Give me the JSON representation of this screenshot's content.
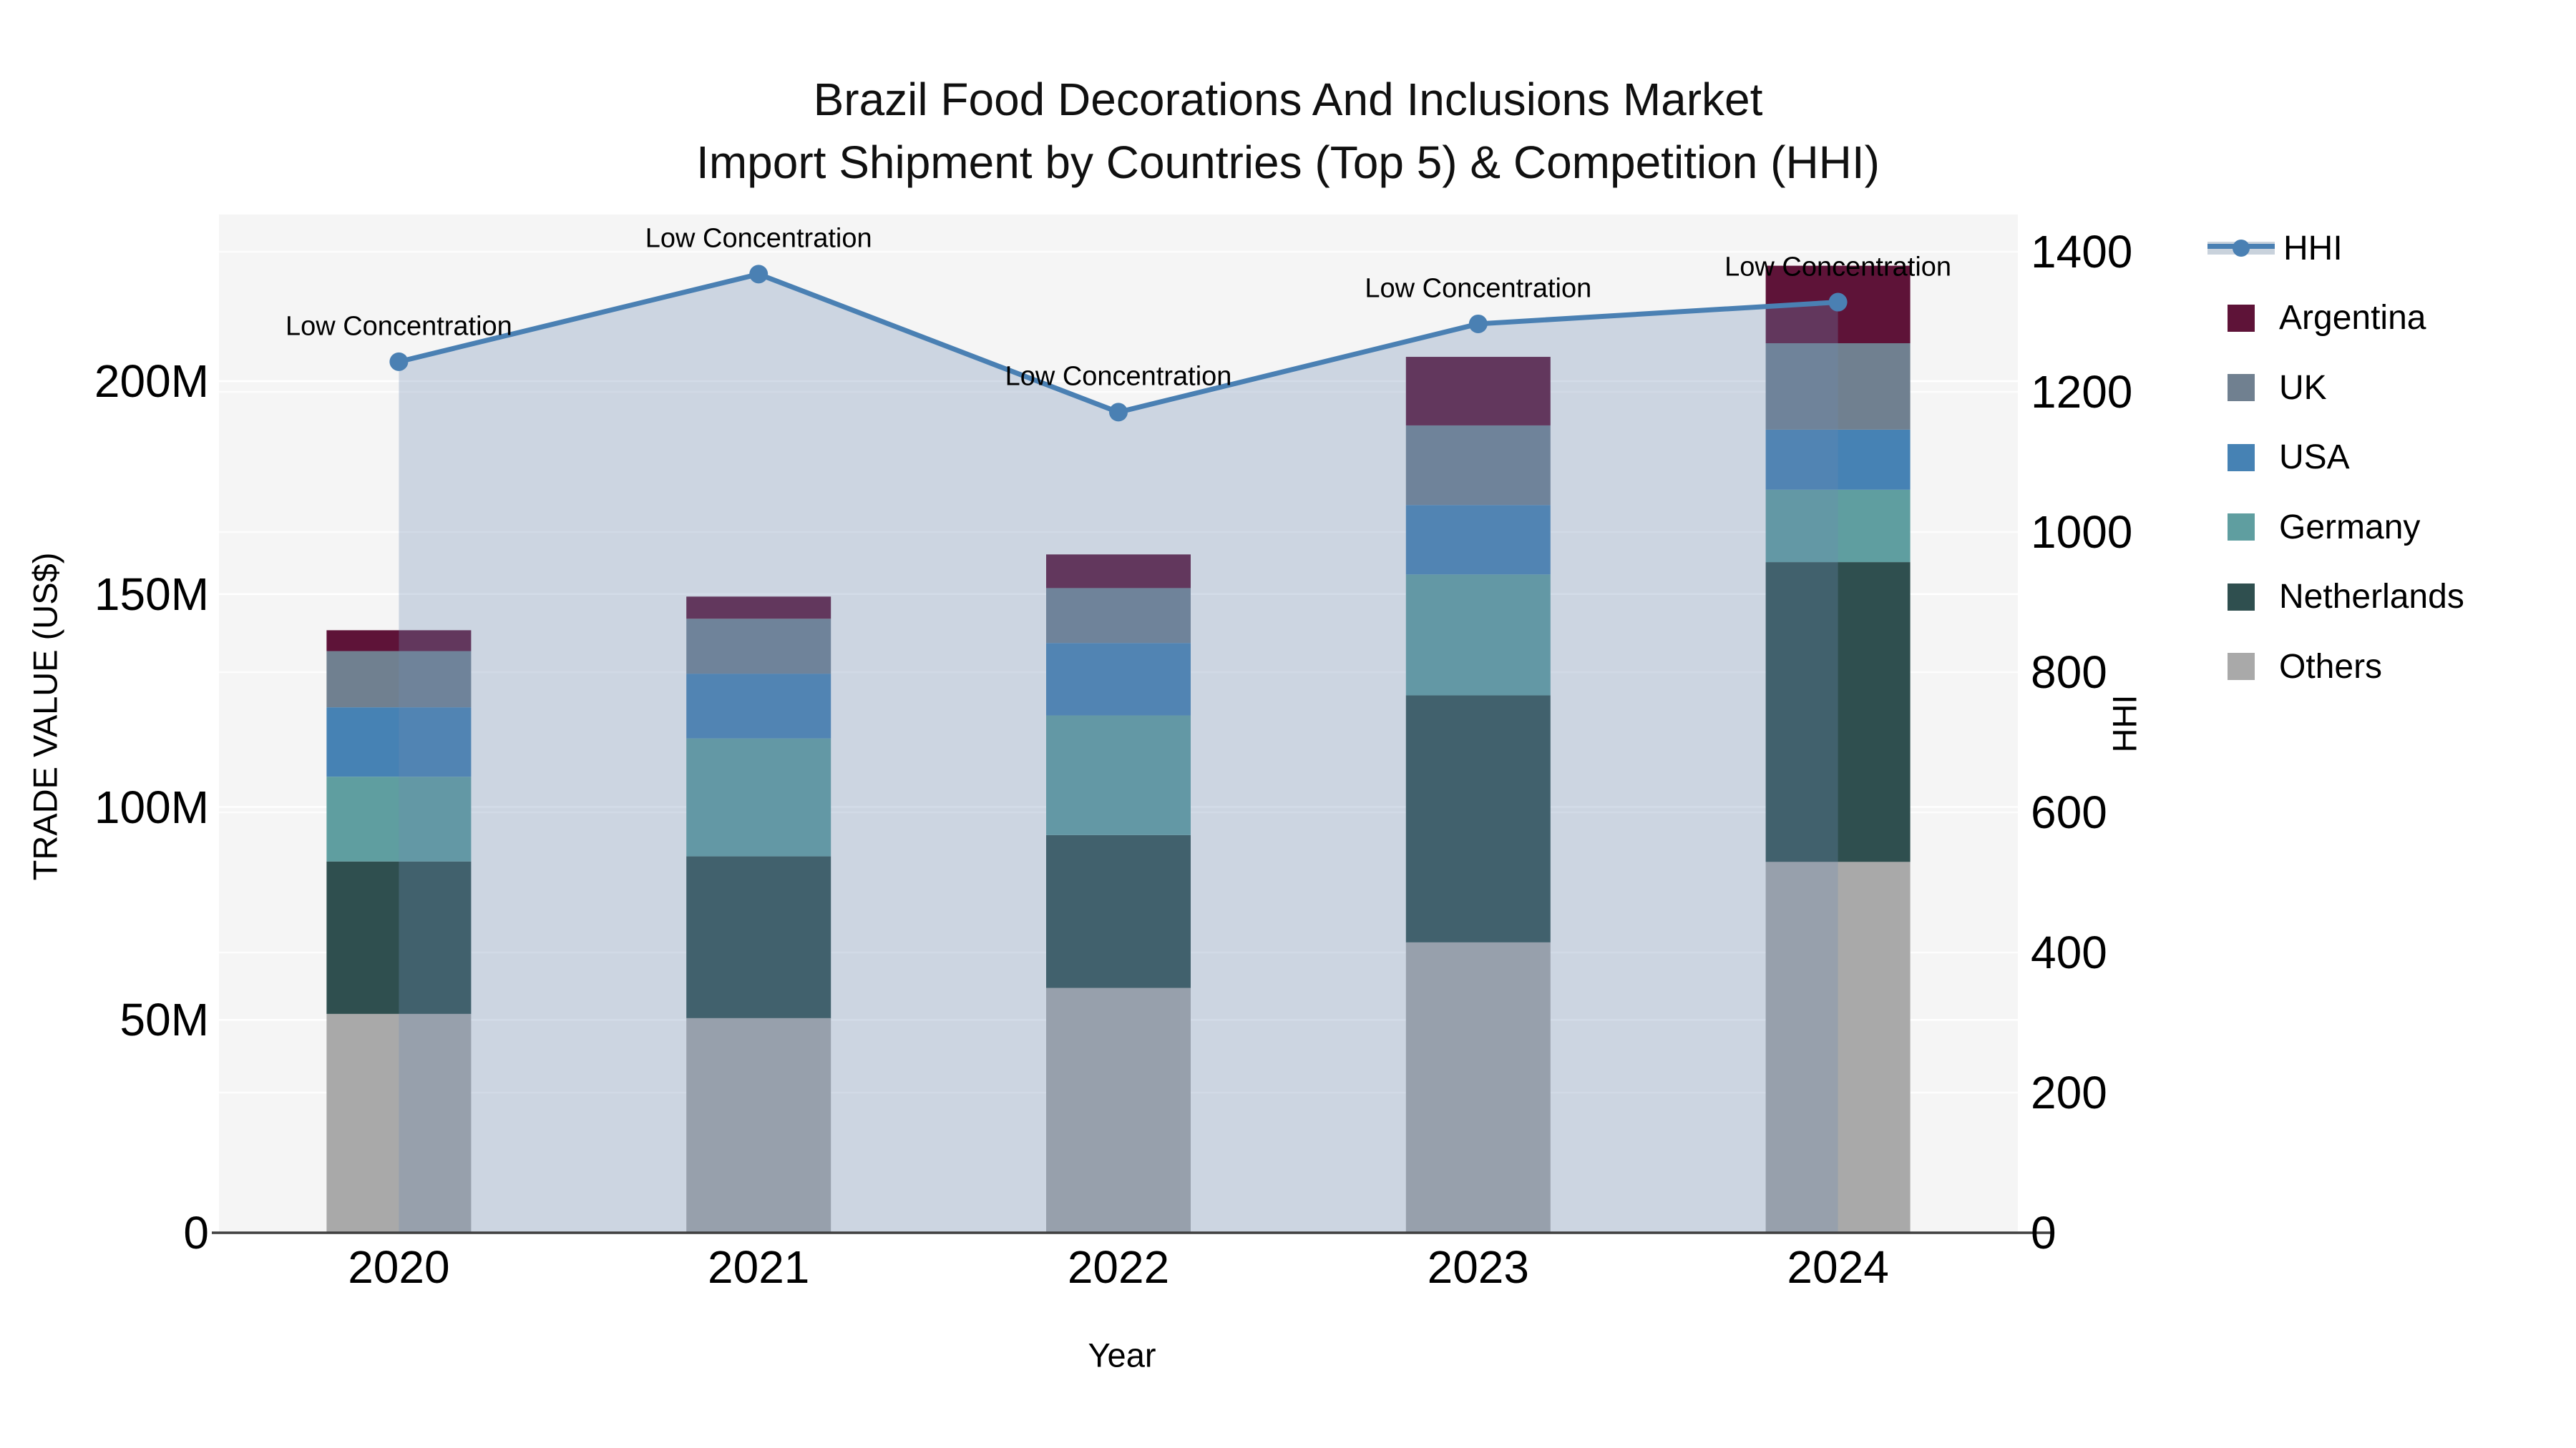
{
  "title": {
    "line1": "Brazil Food Decorations And Inclusions Market",
    "line2": "Import Shipment by Countries (Top 5) & Competition (HHI)"
  },
  "axes": {
    "y_left": {
      "title": "TRADE VALUE (US$)",
      "tick_labels": [
        "0",
        "50M",
        "100M",
        "150M",
        "200M"
      ],
      "tick_values": [
        0,
        50,
        100,
        150,
        200
      ],
      "range": [
        0,
        239
      ],
      "unit": "millions US$"
    },
    "y_right": {
      "title": "HHI",
      "tick_labels": [
        "0",
        "200",
        "400",
        "600",
        "800",
        "1000",
        "1200",
        "1400"
      ],
      "tick_values": [
        0,
        200,
        400,
        600,
        800,
        1000,
        1200,
        1400
      ],
      "range": [
        0,
        1453
      ]
    },
    "x": {
      "title": "Year",
      "categories": [
        "2020",
        "2021",
        "2022",
        "2023",
        "2024"
      ]
    }
  },
  "annotation_text": "Low Concentration",
  "legend_items": [
    "HHI",
    "Argentina",
    "UK",
    "USA",
    "Germany",
    "Netherlands",
    "Others"
  ],
  "colors": {
    "argentina": "#5E1338",
    "uk": "#708090",
    "usa": "#4682B4",
    "germany": "#5F9EA0",
    "netherlands": "#2F4F4F",
    "others": "#A9A9A9",
    "hhi_line": "#4A80B3",
    "area_fill": "rgba(108,140,180,0.30)",
    "plot_bg": "#F5F5F5",
    "grid": "#FFFFFF",
    "axis_line": "#3F3F3F"
  },
  "chart_data": {
    "type": "bar",
    "subtype": "stacked-bars-with-line-overlay",
    "title": "Brazil Food Decorations And Inclusions Market Import Shipment by Countries (Top 5) & Competition (HHI)",
    "xlabel": "Year",
    "ylabel_left": "TRADE VALUE (US$)",
    "ylabel_right": "HHI",
    "categories": [
      "2020",
      "2021",
      "2022",
      "2023",
      "2024"
    ],
    "stack_order_bottom_to_top": [
      "Others",
      "Netherlands",
      "Germany",
      "USA",
      "UK",
      "Argentina"
    ],
    "series": [
      {
        "name": "Argentina",
        "axis": "left",
        "values_musd": [
          4.9,
          5.2,
          7.9,
          16.1,
          18.2
        ]
      },
      {
        "name": "UK",
        "axis": "left",
        "values_musd": [
          13.2,
          12.9,
          12.9,
          18.7,
          20.3
        ]
      },
      {
        "name": "USA",
        "axis": "left",
        "values_musd": [
          16.3,
          15.2,
          17.0,
          16.3,
          14.1
        ]
      },
      {
        "name": "Germany",
        "axis": "left",
        "values_musd": [
          19.9,
          27.7,
          28.1,
          28.4,
          17.0
        ]
      },
      {
        "name": "Netherlands",
        "axis": "left",
        "values_musd": [
          35.8,
          38.0,
          35.9,
          58.0,
          70.4
        ]
      },
      {
        "name": "Others",
        "axis": "left",
        "values_musd": [
          51.4,
          50.4,
          57.5,
          68.2,
          87.1
        ]
      }
    ],
    "bar_totals_musd": [
      141.5,
      149.4,
      159.3,
      205.7,
      227.1
    ],
    "line_series": {
      "name": "HHI",
      "axis": "right",
      "values": [
        1243,
        1368,
        1171,
        1297,
        1328
      ],
      "area_filled_to_zero": true
    },
    "point_annotations": [
      "Low Concentration",
      "Low Concentration",
      "Low Concentration",
      "Low Concentration",
      "Low Concentration"
    ],
    "ylim_left_musd": [
      0,
      239
    ],
    "ylim_right": [
      0,
      1453
    ],
    "grid": true,
    "legend_position": "right"
  }
}
